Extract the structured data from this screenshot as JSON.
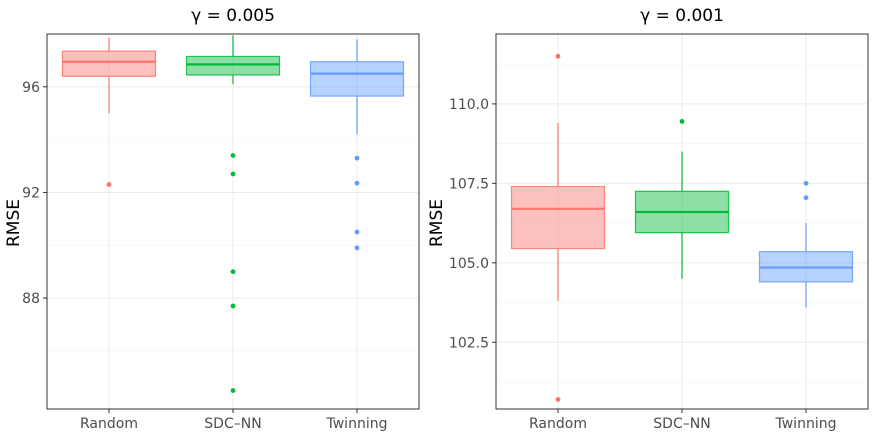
{
  "chart_data": [
    {
      "type": "box",
      "title": "γ = 0.005",
      "ylabel": "RMSE",
      "xlabel": "",
      "categories": [
        "Random",
        "SDC–NN",
        "Twinning"
      ],
      "colors": [
        "#F8766D",
        "#00BA38",
        "#619CFF"
      ],
      "ylim": [
        83.8,
        98.0
      ],
      "yticks": [
        88,
        92,
        96
      ],
      "ytick_labels": [
        "88",
        "92",
        "96"
      ],
      "grid": true,
      "boxes": [
        {
          "category": "Random",
          "whisker_low": 95.0,
          "q1": 96.4,
          "median": 96.95,
          "q3": 97.35,
          "whisker_high": 97.85,
          "outliers": [
            92.3
          ]
        },
        {
          "category": "SDC–NN",
          "whisker_low": 96.1,
          "q1": 96.45,
          "median": 96.85,
          "q3": 97.15,
          "whisker_high": 97.95,
          "outliers": [
            93.4,
            92.7,
            89.0,
            87.7,
            84.5
          ]
        },
        {
          "category": "Twinning",
          "whisker_low": 94.2,
          "q1": 95.65,
          "median": 96.5,
          "q3": 96.95,
          "whisker_high": 97.8,
          "outliers": [
            93.3,
            92.35,
            90.5,
            89.9
          ]
        }
      ]
    },
    {
      "type": "box",
      "title": "γ = 0.001",
      "ylabel": "RMSE",
      "xlabel": "",
      "categories": [
        "Random",
        "SDC–NN",
        "Twinning"
      ],
      "colors": [
        "#F8766D",
        "#00BA38",
        "#619CFF"
      ],
      "ylim": [
        100.4,
        112.2
      ],
      "yticks": [
        102.5,
        105.0,
        107.5,
        110.0
      ],
      "ytick_labels": [
        "102.5",
        "105.0",
        "107.5",
        "110.0"
      ],
      "grid": true,
      "boxes": [
        {
          "category": "Random",
          "whisker_low": 103.8,
          "q1": 105.45,
          "median": 106.7,
          "q3": 107.4,
          "whisker_high": 109.4,
          "outliers": [
            111.5,
            100.7
          ]
        },
        {
          "category": "SDC–NN",
          "whisker_low": 104.5,
          "q1": 105.95,
          "median": 106.6,
          "q3": 107.25,
          "whisker_high": 108.5,
          "outliers": [
            109.45
          ]
        },
        {
          "category": "Twinning",
          "whisker_low": 103.6,
          "q1": 104.4,
          "median": 104.85,
          "q3": 105.35,
          "whisker_high": 106.25,
          "outliers": [
            107.5,
            107.05
          ]
        }
      ]
    }
  ]
}
